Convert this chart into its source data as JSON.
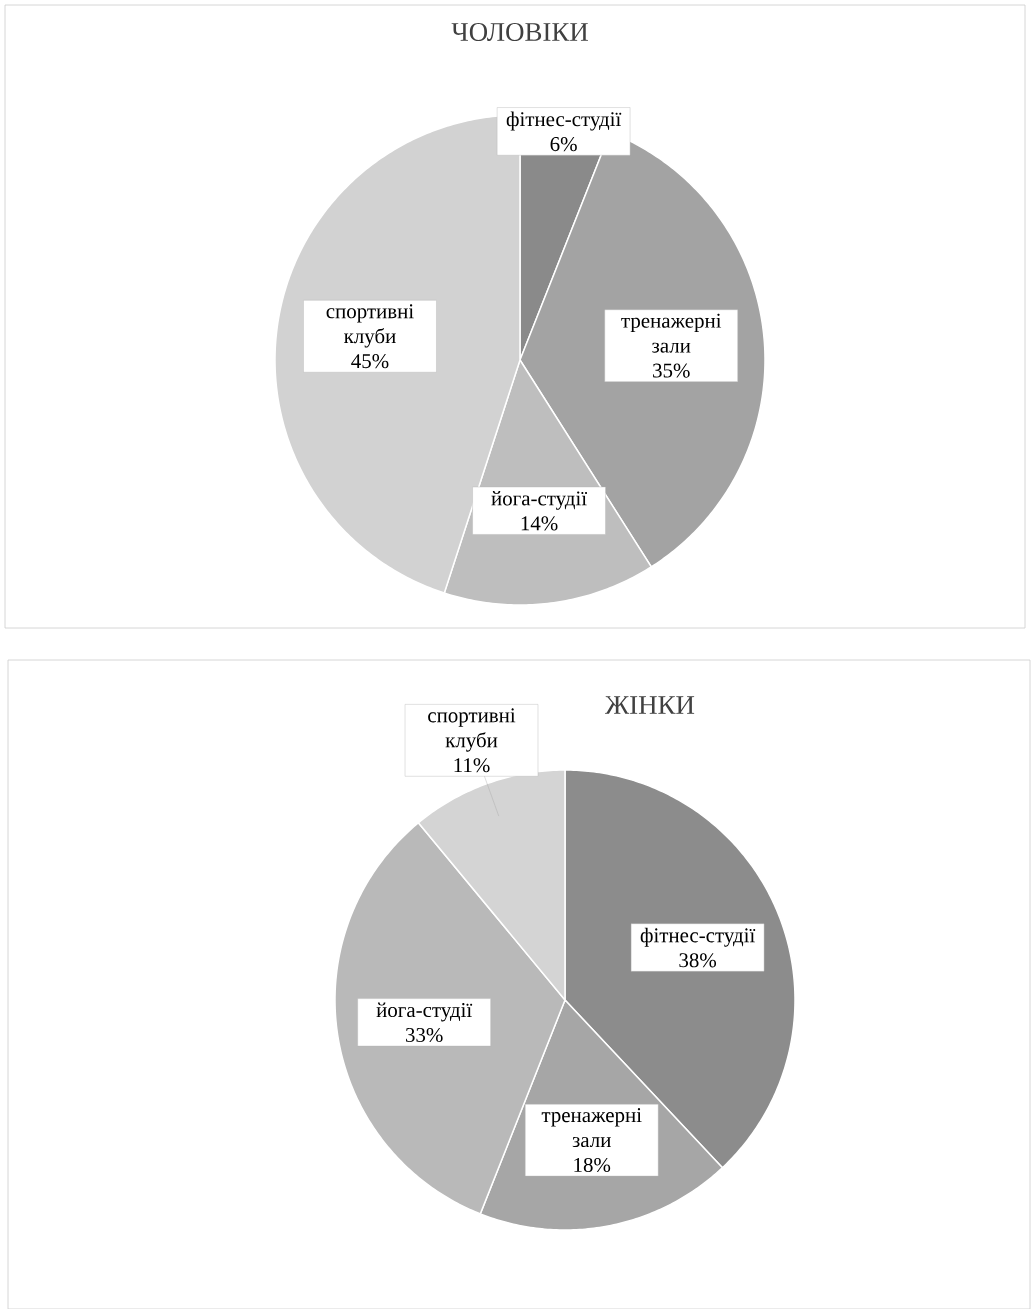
{
  "chart_data": [
    {
      "type": "pie",
      "title": "ЧОЛОВІКИ",
      "categories": [
        "фітнес-студії",
        "тренажерні зали",
        "йога-студії",
        "спортивні клуби"
      ],
      "values": [
        6,
        35,
        14,
        45
      ],
      "value_labels": [
        "6%",
        "35%",
        "14%",
        "45%"
      ],
      "colors": [
        "#8a8a8a",
        "#a3a3a3",
        "#bebebe",
        "#d2d2d2"
      ]
    },
    {
      "type": "pie",
      "title": "ЖІНКИ",
      "categories": [
        "фітнес-студії",
        "тренажерні зали",
        "йога-студії",
        "спортивні клуби"
      ],
      "values": [
        38,
        18,
        33,
        11
      ],
      "value_labels": [
        "38%",
        "18%",
        "33%",
        "11%"
      ],
      "colors": [
        "#8c8c8c",
        "#a6a6a6",
        "#b9b9b9",
        "#d4d4d4"
      ]
    }
  ]
}
